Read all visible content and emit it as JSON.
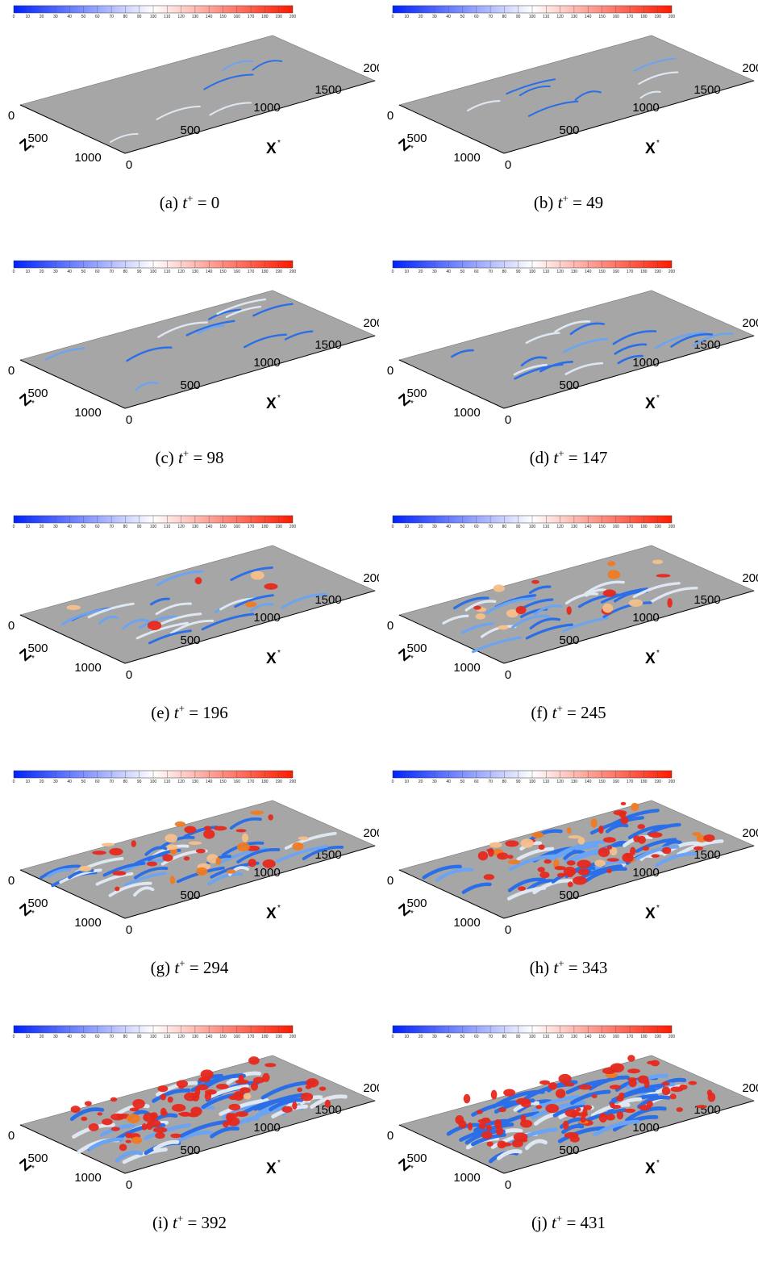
{
  "colorbar": {
    "ticks": [
      "0",
      "10",
      "20",
      "30",
      "40",
      "50",
      "60",
      "70",
      "80",
      "90",
      "100",
      "110",
      "120",
      "130",
      "140",
      "150",
      "160",
      "170",
      "180",
      "190",
      "200"
    ],
    "min": 0,
    "max": 200,
    "colors": [
      "#0022ff",
      "#ffffff",
      "#ff1a00"
    ]
  },
  "axes": {
    "x_label": "X",
    "z_label": "Z",
    "star": "*",
    "x_ticks": [
      "500",
      "1000",
      "1500",
      "2000"
    ],
    "z_ticks": [
      "0",
      "500",
      "1000"
    ],
    "x_zero": "0",
    "plane_color": "#a6a6a6"
  },
  "panels": [
    {
      "label": "(a)",
      "t_var": "t",
      "t_sup": "+",
      "t_value": "= 0",
      "level": 0.05
    },
    {
      "label": "(b)",
      "t_var": "t",
      "t_sup": "+",
      "t_value": "= 49",
      "level": 0.08
    },
    {
      "label": "(c)",
      "t_var": "t",
      "t_sup": "+",
      "t_value": "= 98",
      "level": 0.18
    },
    {
      "label": "(d)",
      "t_var": "t",
      "t_sup": "+",
      "t_value": "= 147",
      "level": 0.25
    },
    {
      "label": "(e)",
      "t_var": "t",
      "t_sup": "+",
      "t_value": "= 196",
      "level": 0.35
    },
    {
      "label": "(f)",
      "t_var": "t",
      "t_sup": "+",
      "t_value": "= 245",
      "level": 0.45
    },
    {
      "label": "(g)",
      "t_var": "t",
      "t_sup": "+",
      "t_value": "= 294",
      "level": 0.6
    },
    {
      "label": "(h)",
      "t_var": "t",
      "t_sup": "+",
      "t_value": "= 343",
      "level": 0.8
    },
    {
      "label": "(i)",
      "t_var": "t",
      "t_sup": "+",
      "t_value": "= 392",
      "level": 0.92
    },
    {
      "label": "(j)",
      "t_var": "t",
      "t_sup": "+",
      "t_value": "= 431",
      "level": 0.95
    }
  ]
}
